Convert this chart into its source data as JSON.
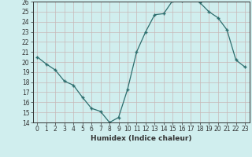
{
  "xlabel": "Humidex (Indice chaleur)",
  "x": [
    0,
    1,
    2,
    3,
    4,
    5,
    6,
    7,
    8,
    9,
    10,
    11,
    12,
    13,
    14,
    15,
    16,
    17,
    18,
    19,
    20,
    21,
    22,
    23
  ],
  "y": [
    20.5,
    19.8,
    19.2,
    18.1,
    17.7,
    16.5,
    15.4,
    15.1,
    14.0,
    14.5,
    17.3,
    21.0,
    23.0,
    24.7,
    24.8,
    26.1,
    26.1,
    26.6,
    25.9,
    25.0,
    24.4,
    23.2,
    20.2,
    19.5
  ],
  "ylim": [
    14,
    26
  ],
  "yticks": [
    14,
    15,
    16,
    17,
    18,
    19,
    20,
    21,
    22,
    23,
    24,
    25,
    26
  ],
  "xticks": [
    0,
    1,
    2,
    3,
    4,
    5,
    6,
    7,
    8,
    9,
    10,
    11,
    12,
    13,
    14,
    15,
    16,
    17,
    18,
    19,
    20,
    21,
    22,
    23
  ],
  "line_color": "#2d6e6e",
  "marker_color": "#2d6e6e",
  "bg_color": "#d0eeee",
  "grid_color": "#c8b8b8",
  "axis_color": "#333333",
  "label_fontsize": 6.5,
  "tick_fontsize": 5.5
}
